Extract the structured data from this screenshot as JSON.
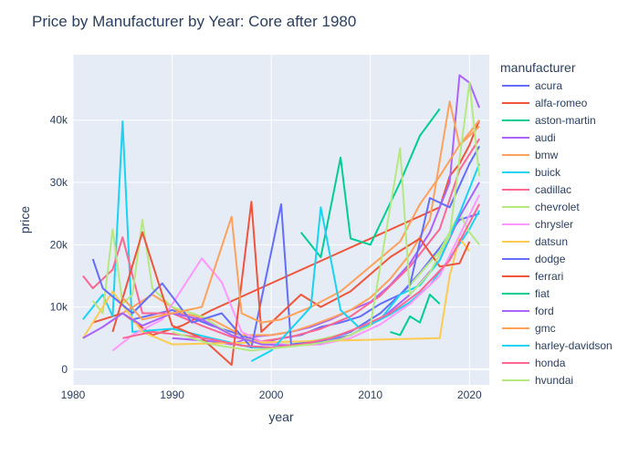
{
  "chart_data": {
    "type": "line",
    "title": "Price by Manufacturer by Year: Core after 1980",
    "xlabel": "year",
    "ylabel": "price",
    "xlim": [
      1980,
      2022
    ],
    "ylim": [
      -2500,
      50500
    ],
    "x_ticks": [
      1980,
      1990,
      2000,
      2010,
      2020
    ],
    "x_tick_labels": [
      "1980",
      "1990",
      "2000",
      "2010",
      "2020"
    ],
    "y_ticks": [
      0,
      10000,
      20000,
      30000,
      40000
    ],
    "y_tick_labels": [
      "0",
      "10k",
      "20k",
      "30k",
      "40k"
    ],
    "grid": true,
    "legend_title": "manufacturer",
    "legend_position": "right",
    "series": [
      {
        "name": "acura",
        "color": "#636efa",
        "points": [
          [
            1986,
            8000
          ],
          [
            1990,
            9500
          ],
          [
            1994,
            7000
          ],
          [
            1997,
            5500
          ],
          [
            1999,
            4200
          ],
          [
            2001,
            5000
          ],
          [
            2003,
            5500
          ],
          [
            2005,
            6800
          ],
          [
            2007,
            7500
          ],
          [
            2009,
            8500
          ],
          [
            2011,
            10500
          ],
          [
            2013,
            12000
          ],
          [
            2015,
            15500
          ],
          [
            2017,
            19500
          ],
          [
            2019,
            24000
          ],
          [
            2021,
            25000
          ]
        ]
      },
      {
        "name": "alfa-romeo",
        "color": "#ef553b",
        "points": [
          [
            1982,
            7500
          ],
          [
            1985,
            9000
          ],
          [
            1988,
            5500
          ],
          [
            1991,
            7000
          ],
          [
            1994,
            9500
          ],
          [
            2017,
            26000
          ],
          [
            2018,
            31000
          ],
          [
            2019,
            33000
          ],
          [
            2020,
            36000
          ],
          [
            2021,
            40000
          ]
        ]
      },
      {
        "name": "aston-martin",
        "color": "#00cc96",
        "points": [
          [
            2003,
            22000
          ],
          [
            2005,
            18000
          ],
          [
            2007,
            34000
          ],
          [
            2008,
            21000
          ],
          [
            2010,
            20000
          ],
          [
            2013,
            30000
          ],
          [
            2015,
            37500
          ],
          [
            2017,
            41800
          ]
        ]
      },
      {
        "name": "audi",
        "color": "#ab63fa",
        "points": [
          [
            1990,
            5000
          ],
          [
            1994,
            4500
          ],
          [
            1996,
            4000
          ],
          [
            1998,
            5200
          ],
          [
            2000,
            5500
          ],
          [
            2002,
            6000
          ],
          [
            2004,
            6800
          ],
          [
            2006,
            8000
          ],
          [
            2008,
            9500
          ],
          [
            2010,
            10800
          ],
          [
            2012,
            13500
          ],
          [
            2014,
            17000
          ],
          [
            2016,
            22000
          ],
          [
            2018,
            30000
          ],
          [
            2019,
            47200
          ],
          [
            2020,
            46000
          ],
          [
            2021,
            42000
          ]
        ]
      },
      {
        "name": "bmw",
        "color": "#ffa15a",
        "points": [
          [
            1985,
            9000
          ],
          [
            1988,
            12000
          ],
          [
            1991,
            9000
          ],
          [
            1994,
            8000
          ],
          [
            1997,
            5500
          ],
          [
            2000,
            5500
          ],
          [
            2002,
            6000
          ],
          [
            2004,
            7000
          ],
          [
            2006,
            8200
          ],
          [
            2008,
            9500
          ],
          [
            2010,
            11500
          ],
          [
            2012,
            14500
          ],
          [
            2014,
            18500
          ],
          [
            2016,
            24000
          ],
          [
            2018,
            43000
          ],
          [
            2019,
            36000
          ],
          [
            2020,
            38000
          ],
          [
            2021,
            40000
          ]
        ]
      },
      {
        "name": "buick",
        "color": "#19d3f3",
        "points": [
          [
            1981,
            8000
          ],
          [
            1983,
            12000
          ],
          [
            1984,
            8500
          ],
          [
            1985,
            39800
          ],
          [
            1986,
            6000
          ],
          [
            1990,
            6500
          ],
          [
            1994,
            5000
          ],
          [
            1998,
            3500
          ],
          [
            2000,
            3500
          ],
          [
            2002,
            3800
          ],
          [
            2004,
            4200
          ],
          [
            2006,
            4800
          ],
          [
            2008,
            5500
          ],
          [
            2010,
            7200
          ],
          [
            2012,
            8800
          ],
          [
            2014,
            10800
          ],
          [
            2016,
            13500
          ],
          [
            2018,
            17800
          ],
          [
            2020,
            22500
          ],
          [
            2021,
            25500
          ]
        ]
      },
      {
        "name": "cadillac",
        "color": "#ff6692",
        "points": [
          [
            1981,
            15000
          ],
          [
            1982,
            13000
          ],
          [
            1983,
            14500
          ],
          [
            1984,
            16000
          ],
          [
            1985,
            21200
          ],
          [
            1987,
            9000
          ],
          [
            1990,
            9000
          ],
          [
            1993,
            7000
          ],
          [
            1996,
            5200
          ],
          [
            1999,
            4500
          ],
          [
            2002,
            5200
          ],
          [
            2005,
            6500
          ],
          [
            2008,
            8500
          ],
          [
            2011,
            11800
          ],
          [
            2014,
            16500
          ],
          [
            2017,
            22500
          ],
          [
            2019,
            32000
          ],
          [
            2021,
            37000
          ]
        ]
      },
      {
        "name": "chevrolet",
        "color": "#b6e880",
        "points": [
          [
            1982,
            11000
          ],
          [
            1983,
            9000
          ],
          [
            1984,
            22500
          ],
          [
            1985,
            10500
          ],
          [
            1986,
            12000
          ],
          [
            1987,
            24000
          ],
          [
            1988,
            13000
          ],
          [
            1990,
            10000
          ],
          [
            1993,
            8500
          ],
          [
            1996,
            5500
          ],
          [
            1999,
            4200
          ],
          [
            2002,
            4000
          ],
          [
            2005,
            4800
          ],
          [
            2008,
            6000
          ],
          [
            2011,
            9000
          ],
          [
            2014,
            13500
          ],
          [
            2017,
            19000
          ],
          [
            2019,
            25000
          ],
          [
            2020,
            22000
          ],
          [
            2021,
            20000
          ]
        ]
      },
      {
        "name": "chrysler",
        "color": "#ff97ff",
        "points": [
          [
            1984,
            3000
          ],
          [
            1986,
            5500
          ],
          [
            1989,
            8000
          ],
          [
            1993,
            17800
          ],
          [
            1995,
            14000
          ],
          [
            1997,
            6000
          ],
          [
            1999,
            4500
          ],
          [
            2002,
            3800
          ],
          [
            2005,
            4000
          ],
          [
            2008,
            5000
          ],
          [
            2011,
            7200
          ],
          [
            2014,
            10500
          ],
          [
            2017,
            15000
          ],
          [
            2019,
            21500
          ],
          [
            2021,
            28000
          ]
        ]
      },
      {
        "name": "datsun",
        "color": "#fecb52",
        "points": [
          [
            1981,
            5000
          ],
          [
            1984,
            12500
          ],
          [
            1987,
            6000
          ],
          [
            1990,
            4000
          ],
          [
            2017,
            5000
          ],
          [
            2018,
            15000
          ],
          [
            2019,
            21000
          ],
          [
            2020,
            19000
          ]
        ]
      },
      {
        "name": "dodge",
        "color": "#636efa",
        "points": [
          [
            1982,
            17700
          ],
          [
            1983,
            13000
          ],
          [
            1986,
            9000
          ],
          [
            1989,
            13800
          ],
          [
            1992,
            7500
          ],
          [
            1995,
            9000
          ],
          [
            1998,
            3500
          ],
          [
            2001,
            26500
          ],
          [
            2002,
            4000
          ],
          [
            2005,
            4500
          ],
          [
            2008,
            6000
          ],
          [
            2011,
            9000
          ],
          [
            2014,
            13500
          ],
          [
            2016,
            27500
          ],
          [
            2018,
            26000
          ],
          [
            2020,
            33000
          ],
          [
            2021,
            35800
          ]
        ]
      },
      {
        "name": "ferrari",
        "color": "#ef553b",
        "points": [
          [
            1984,
            6000
          ],
          [
            1987,
            22000
          ],
          [
            1990,
            7000
          ],
          [
            1993,
            5000
          ],
          [
            1996,
            700
          ],
          [
            1998,
            26900
          ],
          [
            1999,
            6000
          ],
          [
            2001,
            9000
          ],
          [
            2003,
            12000
          ],
          [
            2005,
            10000
          ],
          [
            2008,
            12500
          ],
          [
            2012,
            18000
          ],
          [
            2015,
            21000
          ],
          [
            2017,
            16500
          ],
          [
            2019,
            17000
          ],
          [
            2020,
            20500
          ]
        ]
      },
      {
        "name": "fiat",
        "color": "#00cc96",
        "points": [
          [
            2012,
            6000
          ],
          [
            2013,
            5500
          ],
          [
            2014,
            8500
          ],
          [
            2015,
            7500
          ],
          [
            2016,
            12000
          ],
          [
            2017,
            10500
          ]
        ]
      },
      {
        "name": "ford",
        "color": "#ab63fa",
        "points": [
          [
            1981,
            5000
          ],
          [
            1983,
            6800
          ],
          [
            1985,
            9000
          ],
          [
            1987,
            7000
          ],
          [
            1990,
            9000
          ],
          [
            1993,
            8000
          ],
          [
            1996,
            5500
          ],
          [
            1999,
            4000
          ],
          [
            2002,
            3800
          ],
          [
            2005,
            4200
          ],
          [
            2008,
            5500
          ],
          [
            2011,
            8000
          ],
          [
            2014,
            12000
          ],
          [
            2017,
            17500
          ],
          [
            2019,
            24500
          ],
          [
            2021,
            30000
          ]
        ]
      },
      {
        "name": "gmc",
        "color": "#ffa15a",
        "points": [
          [
            1985,
            11500
          ],
          [
            1987,
            8000
          ],
          [
            1990,
            9000
          ],
          [
            1993,
            10000
          ],
          [
            1996,
            24500
          ],
          [
            1997,
            9000
          ],
          [
            1999,
            7500
          ],
          [
            2001,
            8000
          ],
          [
            2004,
            10000
          ],
          [
            2007,
            12500
          ],
          [
            2010,
            16500
          ],
          [
            2013,
            20500
          ],
          [
            2015,
            26500
          ],
          [
            2017,
            31000
          ],
          [
            2019,
            36000
          ],
          [
            2021,
            39000
          ]
        ]
      },
      {
        "name": "harley-davidson",
        "color": "#19d3f3",
        "points": [
          [
            1998,
            1300
          ],
          [
            2000,
            3000
          ],
          [
            2002,
            6500
          ],
          [
            2004,
            10000
          ],
          [
            2005,
            26000
          ],
          [
            2007,
            9500
          ],
          [
            2009,
            6500
          ],
          [
            2011,
            8000
          ],
          [
            2013,
            12000
          ],
          [
            2015,
            13500
          ],
          [
            2017,
            17500
          ],
          [
            2019,
            25000
          ],
          [
            2021,
            33000
          ]
        ]
      },
      {
        "name": "honda",
        "color": "#ff6692",
        "points": [
          [
            1985,
            5000
          ],
          [
            1988,
            6000
          ],
          [
            1991,
            5500
          ],
          [
            1994,
            4800
          ],
          [
            1997,
            3800
          ],
          [
            2000,
            3500
          ],
          [
            2003,
            4000
          ],
          [
            2006,
            5000
          ],
          [
            2009,
            6800
          ],
          [
            2012,
            9000
          ],
          [
            2015,
            12500
          ],
          [
            2018,
            17500
          ],
          [
            2020,
            23500
          ],
          [
            2021,
            26500
          ]
        ]
      },
      {
        "name": "hvundai",
        "color": "#b6e880",
        "points": [
          [
            1990,
            6000
          ],
          [
            1994,
            4000
          ],
          [
            1998,
            3000
          ],
          [
            2001,
            3500
          ],
          [
            2004,
            4000
          ],
          [
            2007,
            4800
          ],
          [
            2010,
            7000
          ],
          [
            2013,
            35500
          ],
          [
            2014,
            12000
          ],
          [
            2016,
            15500
          ],
          [
            2018,
            21500
          ],
          [
            2020,
            46000
          ],
          [
            2021,
            31000
          ]
        ]
      }
    ]
  }
}
